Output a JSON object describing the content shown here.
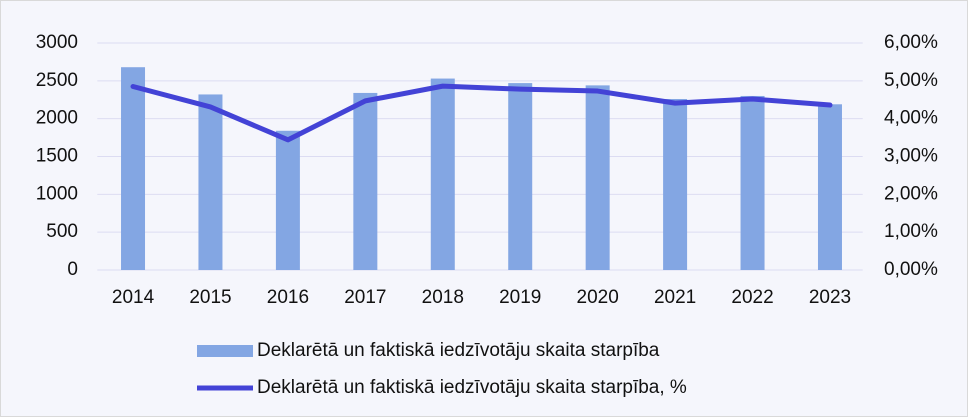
{
  "chart_data": {
    "type": "bar_line",
    "categories": [
      "2014",
      "2015",
      "2016",
      "2017",
      "2018",
      "2019",
      "2020",
      "2021",
      "2022",
      "2023"
    ],
    "series": [
      {
        "name": "Deklarētā un faktiskā iedzīvotāju skaita starpība",
        "type": "bar",
        "color": "#83a6e3",
        "values": [
          2680,
          2320,
          1840,
          2340,
          2530,
          2470,
          2440,
          2260,
          2300,
          2190
        ]
      },
      {
        "name": "Deklarētā un faktiskā iedzīvotāju skaita starpība, %",
        "type": "line",
        "axis": "y2",
        "color": "#4343d6",
        "values": [
          4.85,
          4.31,
          3.44,
          4.47,
          4.86,
          4.78,
          4.73,
          4.41,
          4.52,
          4.36
        ]
      }
    ],
    "ylim": [
      0,
      3000
    ],
    "yticks": [
      0,
      500,
      1000,
      1500,
      2000,
      2500,
      3000
    ],
    "y2lim": [
      0,
      6
    ],
    "y2ticks": [
      {
        "value": 0,
        "label": "0,00%"
      },
      {
        "value": 1,
        "label": "1,00%"
      },
      {
        "value": 2,
        "label": "2,00%"
      },
      {
        "value": 3,
        "label": "3,00%"
      },
      {
        "value": 4,
        "label": "4,00%"
      },
      {
        "value": 5,
        "label": "5,00%"
      },
      {
        "value": 6,
        "label": "6,00%"
      }
    ],
    "grid": true,
    "legend": "bottom"
  }
}
